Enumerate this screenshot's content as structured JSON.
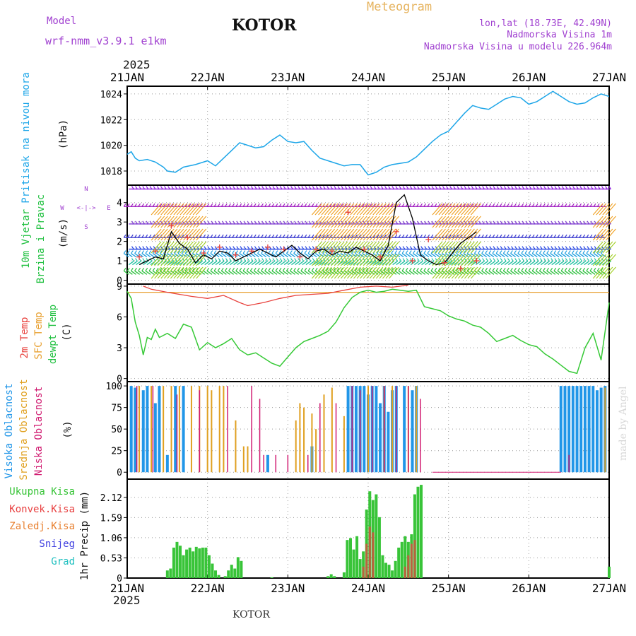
{
  "header": {
    "model_label": "Model",
    "model_value": "wrf-nmm_v3.9.1 e1km",
    "station": "KOTOR",
    "chart_title": "Meteogram",
    "coords": "lon,lat (18.73E, 42.49N)",
    "elevation": "Nadmorska Visina 1m",
    "model_elevation": "Nadmorska Visina u modelu 226.964m",
    "year": "2025"
  },
  "footer": {
    "station": "KOTOR",
    "credit": "made by Angel"
  },
  "colors": {
    "pressure": "#1ea6e8",
    "temp2m": "#e8413c",
    "sfc": "#e8a030",
    "dewpt": "#36c936",
    "cloud_high": "#2196e8",
    "cloud_mid": "#e0a020",
    "cloud_low": "#d01a70",
    "precip_total": "#38c438",
    "precip_conv": "#e84040",
    "precip_frozen": "#e88030",
    "snow": "#4040e0",
    "hail": "#20c0c0",
    "wind_text": "#20c040",
    "title_gold": "#e6b460",
    "purple": "#a040d0"
  },
  "chart_data": [
    {
      "type": "line",
      "panel": "pressure",
      "ylabel_1": "Pritisak na nivou mora",
      "ylabel_2": "(hPa)",
      "x_ticks": [
        "21JAN",
        "22JAN",
        "23JAN",
        "24JAN",
        "25JAN",
        "26JAN",
        "27JAN"
      ],
      "x_range_days": [
        0,
        6
      ],
      "ylim": [
        1016.9,
        1024.6
      ],
      "y_ticks": [
        1018,
        1020,
        1022,
        1024
      ],
      "grid": true,
      "series": [
        {
          "x": [
            0,
            0.05,
            0.1,
            0.15,
            0.25,
            0.35,
            0.45,
            0.5,
            0.6,
            0.7,
            0.85,
            1.0,
            1.1,
            1.2,
            1.3,
            1.4,
            1.5,
            1.6,
            1.7,
            1.8,
            1.9,
            2.0,
            2.1,
            2.2,
            2.3,
            2.4,
            2.5,
            2.6,
            2.7,
            2.8,
            2.9,
            3.0,
            3.1,
            3.15,
            3.2,
            3.3,
            3.4,
            3.5,
            3.6,
            3.7,
            3.8,
            3.9,
            4.0,
            4.1,
            4.2,
            4.3,
            4.4,
            4.5,
            4.6,
            4.7,
            4.8,
            4.9,
            5.0,
            5.1,
            5.2,
            5.3,
            5.4,
            5.5,
            5.6,
            5.7,
            5.8,
            5.9,
            6.0
          ],
          "values": [
            1019.3,
            1019.5,
            1019.0,
            1018.8,
            1018.9,
            1018.7,
            1018.3,
            1018.0,
            1017.9,
            1018.3,
            1018.5,
            1018.8,
            1018.4,
            1019.0,
            1019.6,
            1020.2,
            1020.0,
            1019.8,
            1019.9,
            1020.4,
            1020.8,
            1020.3,
            1020.2,
            1020.3,
            1019.6,
            1019.0,
            1018.8,
            1018.6,
            1018.4,
            1018.5,
            1018.5,
            1017.7,
            1017.9,
            1018.1,
            1018.3,
            1018.5,
            1018.6,
            1018.7,
            1019.1,
            1019.7,
            1020.3,
            1020.8,
            1021.1,
            1021.8,
            1022.5,
            1023.1,
            1022.9,
            1022.8,
            1023.2,
            1023.6,
            1023.8,
            1023.7,
            1023.2,
            1023.4,
            1023.8,
            1024.2,
            1023.8,
            1023.4,
            1023.2,
            1023.3,
            1023.7,
            1024.0,
            1023.8
          ]
        }
      ]
    },
    {
      "type": "line",
      "panel": "wind",
      "ylabel_1": "10m Vjetar",
      "ylabel_2": "Brzina i Pravac",
      "ylabel_3": "(m/s)",
      "compass": {
        "n": "N",
        "w": "W",
        "e": "E",
        "s": "S",
        "arrows": "<-|->"
      },
      "ylim": [
        -0.2,
        4.9
      ],
      "y_ticks": [
        0,
        1,
        2,
        3,
        4
      ],
      "barb_rows": [
        0.3,
        0.8,
        1.2,
        1.6,
        2.2,
        2.9,
        3.8,
        4.7
      ],
      "series": [
        {
          "name": "speed",
          "x": [
            0.15,
            0.25,
            0.35,
            0.45,
            0.55,
            0.65,
            0.75,
            0.85,
            0.95,
            1.05,
            1.15,
            1.25,
            1.35,
            1.45,
            1.55,
            1.65,
            1.75,
            1.85,
            1.95,
            2.05,
            2.15,
            2.25,
            2.35,
            2.45,
            2.55,
            2.65,
            2.75,
            2.85,
            2.95,
            3.05,
            3.15,
            3.25,
            3.35,
            3.45,
            3.55,
            3.65,
            3.75,
            3.85,
            3.95,
            4.05,
            4.15,
            4.25,
            4.35
          ],
          "values": [
            0.8,
            1.0,
            1.2,
            1.1,
            2.5,
            1.9,
            1.6,
            0.9,
            1.3,
            1.1,
            1.5,
            1.4,
            1.0,
            1.2,
            1.4,
            1.6,
            1.4,
            1.2,
            1.5,
            1.8,
            1.4,
            1.1,
            1.5,
            1.6,
            1.3,
            1.5,
            1.4,
            1.7,
            1.5,
            1.3,
            1.0,
            1.8,
            4.0,
            4.4,
            3.2,
            1.3,
            1.0,
            0.8,
            0.9,
            1.4,
            1.9,
            2.2,
            2.5
          ]
        },
        {
          "name": "gust",
          "x": [
            0.15,
            0.35,
            0.55,
            0.75,
            0.95,
            1.15,
            1.35,
            1.55,
            1.75,
            1.95,
            2.15,
            2.35,
            2.55,
            2.75,
            2.95,
            3.15,
            3.35,
            3.55,
            3.75,
            3.95,
            4.15,
            4.35
          ],
          "values": [
            1.2,
            1.5,
            2.8,
            2.2,
            1.4,
            1.7,
            1.3,
            1.5,
            1.7,
            1.6,
            1.2,
            1.6,
            1.5,
            3.5,
            1.6,
            1.2,
            2.5,
            1.0,
            2.1,
            0.9,
            0.6,
            1.0
          ]
        }
      ]
    },
    {
      "type": "line",
      "panel": "temperature",
      "ylabel_1": "2m Temp",
      "ylabel_2": "SFC Temp",
      "ylabel_3": "dewpt Temp",
      "ylabel_4": "(C)",
      "ylim": [
        -0.3,
        9.2
      ],
      "y_ticks": [
        0,
        3,
        6,
        9
      ],
      "series": [
        {
          "name": "2m",
          "x": [
            0.2,
            0.3,
            0.5,
            0.8,
            1.0,
            1.2,
            1.4,
            1.5,
            1.7,
            1.9,
            2.1,
            2.3,
            2.5,
            2.7,
            2.9,
            3.1,
            3.3,
            3.5
          ],
          "values": [
            9.0,
            8.7,
            8.4,
            8.0,
            7.8,
            8.1,
            7.4,
            7.1,
            7.4,
            7.8,
            8.1,
            8.2,
            8.3,
            8.6,
            8.9,
            9.0,
            8.9,
            9.1
          ]
        },
        {
          "name": "sfc",
          "x": [
            0,
            6
          ],
          "values": [
            8.4,
            8.4
          ]
        },
        {
          "name": "dewpt",
          "x": [
            0,
            0.05,
            0.1,
            0.15,
            0.2,
            0.25,
            0.3,
            0.35,
            0.4,
            0.5,
            0.6,
            0.7,
            0.8,
            0.9,
            1.0,
            1.1,
            1.2,
            1.3,
            1.4,
            1.5,
            1.6,
            1.7,
            1.8,
            1.9,
            2.0,
            2.1,
            2.2,
            2.3,
            2.4,
            2.5,
            2.6,
            2.7,
            2.8,
            2.9,
            3.0,
            3.1,
            3.2,
            3.3,
            3.4,
            3.5,
            3.6,
            3.7,
            3.8,
            3.9,
            4.0,
            4.1,
            4.2,
            4.3,
            4.4,
            4.5,
            4.6,
            4.7,
            4.8,
            4.9,
            5.0,
            5.1,
            5.2,
            5.3,
            5.4,
            5.5,
            5.6,
            5.7,
            5.8,
            5.9,
            6.0
          ],
          "values": [
            8.5,
            7.8,
            5.5,
            4.2,
            2.3,
            4.0,
            3.8,
            4.8,
            4.0,
            4.4,
            3.9,
            5.3,
            5.0,
            2.8,
            3.5,
            3.0,
            3.4,
            3.9,
            2.8,
            2.3,
            2.5,
            2.0,
            1.5,
            1.2,
            2.1,
            3.0,
            3.6,
            3.9,
            4.2,
            4.6,
            5.5,
            6.9,
            7.9,
            8.4,
            8.6,
            8.4,
            8.5,
            8.7,
            8.6,
            8.5,
            8.6,
            7.0,
            6.8,
            6.6,
            6.1,
            5.8,
            5.6,
            5.2,
            5.0,
            4.4,
            3.6,
            3.9,
            4.2,
            3.7,
            3.3,
            3.1,
            2.4,
            1.9,
            1.3,
            0.7,
            0.5,
            3.0,
            4.4,
            1.8,
            7.4
          ]
        }
      ]
    },
    {
      "type": "bar",
      "panel": "cloud",
      "ylabel_1": "Visoka Oblacnost",
      "ylabel_2": "Srednja Oblacnost",
      "ylabel_3": "Niska Oblacnost",
      "ylabel_4": "(%)",
      "ylim": [
        -8,
        105
      ],
      "y_ticks": [
        0,
        25,
        50,
        75,
        100
      ],
      "series": [
        {
          "name": "high",
          "x": [
            0.05,
            0.1,
            0.2,
            0.25,
            0.35,
            0.4,
            0.5,
            0.6,
            0.7,
            1.75,
            2.3,
            2.75,
            2.8,
            2.85,
            2.9,
            2.95,
            3.0,
            3.05,
            3.1,
            3.15,
            3.2,
            3.25,
            3.3,
            3.35,
            3.45,
            3.55,
            3.6,
            5.4,
            5.45,
            5.5,
            5.55,
            5.6,
            5.65,
            5.7,
            5.75,
            5.8,
            5.85,
            5.9,
            5.95
          ],
          "values": [
            100,
            98,
            95,
            100,
            80,
            100,
            20,
            100,
            100,
            20,
            30,
            100,
            100,
            100,
            100,
            100,
            90,
            100,
            100,
            80,
            100,
            70,
            95,
            100,
            100,
            95,
            100,
            100,
            100,
            100,
            100,
            100,
            100,
            100,
            100,
            100,
            95,
            98,
            100
          ]
        },
        {
          "name": "mid",
          "x": [
            0.15,
            0.3,
            0.45,
            0.55,
            0.65,
            0.8,
            0.9,
            1.0,
            1.05,
            1.15,
            1.2,
            1.35,
            1.45,
            1.5,
            2.1,
            2.15,
            2.2,
            2.3,
            2.35,
            2.45,
            2.55,
            2.7,
            3.0,
            3.2,
            3.3,
            3.5,
            3.6,
            5.95
          ],
          "values": [
            100,
            100,
            100,
            100,
            100,
            100,
            100,
            100,
            95,
            100,
            100,
            60,
            30,
            30,
            60,
            80,
            75,
            68,
            50,
            90,
            98,
            65,
            100,
            100,
            100,
            100,
            100,
            98
          ]
        },
        {
          "name": "low",
          "x": [
            0.12,
            0.32,
            0.62,
            0.9,
            1.25,
            1.55,
            1.65,
            1.7,
            1.85,
            2.0,
            2.25,
            2.4,
            2.6,
            2.8,
            2.9,
            3.05,
            3.2,
            3.35,
            3.5,
            3.65,
            5.5
          ],
          "values": [
            100,
            100,
            90,
            95,
            100,
            100,
            85,
            20,
            20,
            20,
            20,
            80,
            80,
            100,
            95,
            100,
            100,
            100,
            100,
            85,
            20
          ]
        }
      ]
    },
    {
      "type": "bar",
      "panel": "precip",
      "ylabel_1": "1hr Precip (mm)",
      "legend": [
        "Ukupna Kisa",
        "Konvek.Kisa",
        "Zaledj.Kisa",
        "Snijeg",
        "Grad"
      ],
      "ylim": [
        0,
        2.6
      ],
      "y_ticks": [
        0,
        0.53,
        1.06,
        1.59,
        2.12
      ],
      "series": [
        {
          "name": "total",
          "x": [
            0.5,
            0.54,
            0.58,
            0.62,
            0.66,
            0.7,
            0.74,
            0.78,
            0.82,
            0.86,
            0.9,
            0.94,
            0.98,
            1.02,
            1.06,
            1.1,
            1.14,
            1.22,
            1.26,
            1.3,
            1.34,
            1.38,
            1.42,
            1.8,
            2.5,
            2.54,
            2.58,
            2.7,
            2.74,
            2.78,
            2.82,
            2.86,
            2.9,
            2.94,
            2.98,
            3.02,
            3.06,
            3.1,
            3.14,
            3.18,
            3.22,
            3.26,
            3.3,
            3.34,
            3.38,
            3.42,
            3.46,
            3.5,
            3.54,
            3.58,
            3.62,
            3.66,
            6.0
          ],
          "values": [
            0.2,
            0.25,
            0.8,
            0.95,
            0.85,
            0.6,
            0.75,
            0.8,
            0.7,
            0.82,
            0.78,
            0.8,
            0.8,
            0.6,
            0.38,
            0.2,
            0.08,
            0.05,
            0.2,
            0.35,
            0.25,
            0.55,
            0.45,
            0.02,
            0.05,
            0.1,
            0.05,
            0.15,
            1.0,
            1.05,
            0.75,
            1.1,
            0.5,
            0.7,
            1.8,
            2.28,
            2.05,
            2.2,
            1.6,
            0.6,
            0.4,
            0.35,
            0.2,
            0.45,
            0.8,
            0.95,
            1.1,
            0.95,
            1.15,
            2.2,
            2.4,
            2.45,
            0.3
          ]
        },
        {
          "name": "conv",
          "x": [
            2.94,
            2.98,
            3.02,
            3.06,
            3.46,
            3.5,
            3.54,
            3.58
          ],
          "values": [
            0.3,
            0.9,
            1.35,
            1.2,
            0.3,
            0.6,
            0.9,
            1.0
          ]
        }
      ]
    }
  ]
}
